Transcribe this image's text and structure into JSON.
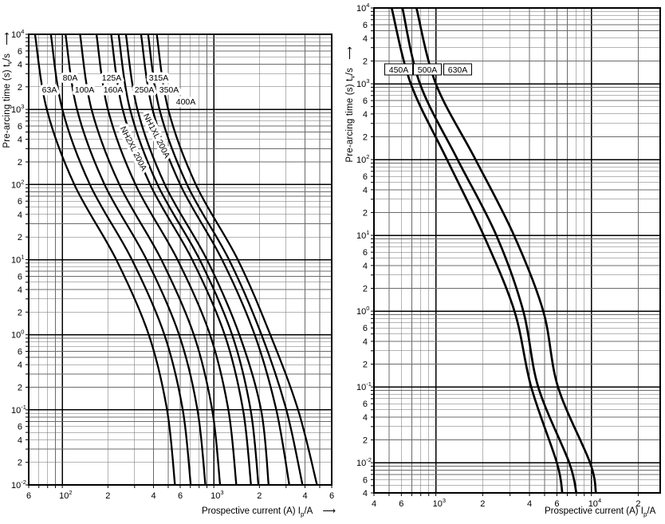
{
  "ui": {
    "up_arrow": "   ⟶",
    "right_arrow": "    ⟶"
  },
  "styles": {
    "background": "#ffffff",
    "curve_color": "#000000",
    "grid_minor_color": "#6b6b6b",
    "grid_major_color": "#000000",
    "label_halo": "#ffffff"
  },
  "chart_data": [
    {
      "id": "left",
      "type": "line",
      "log_x": true,
      "log_y": true,
      "grid": "log-major-minor",
      "x_label": {
        "text": "Prospective current (A) I",
        "sub": "p",
        "post": "/A"
      },
      "y_label": {
        "text": "Pre-arcing time (s) t",
        "sub": "v",
        "post": "/s"
      },
      "x_range": [
        60,
        6000
      ],
      "y_range": [
        0.01,
        10000
      ],
      "x_minor_labels": [
        2,
        4,
        6
      ],
      "y_minor_labels": [
        6,
        4,
        2
      ],
      "stroke_width": 2.3,
      "curves": [
        {
          "name": "63A",
          "points": [
            [
              66,
              10000
            ],
            [
              79,
              1000
            ],
            [
              120,
              100
            ],
            [
              227,
              10
            ],
            [
              372,
              1
            ],
            [
              491,
              0.1
            ],
            [
              554,
              0.01
            ]
          ]
        },
        {
          "name": "80A",
          "points": [
            [
              84,
              10000
            ],
            [
              100,
              1000
            ],
            [
              152,
              100
            ],
            [
              288,
              10
            ],
            [
              472,
              1
            ],
            [
              624,
              0.1
            ],
            [
              704,
              0.01
            ]
          ]
        },
        {
          "name": "100A",
          "points": [
            [
              105,
              10000
            ],
            [
              125,
              1000
            ],
            [
              190,
              100
            ],
            [
              360,
              10
            ],
            [
              590,
              1
            ],
            [
              780,
              0.1
            ],
            [
              880,
              0.01
            ]
          ]
        },
        {
          "name": "125A",
          "points": [
            [
              131,
              10000
            ],
            [
              156,
              1000
            ],
            [
              238,
              100
            ],
            [
              450,
              10
            ],
            [
              738,
              1
            ],
            [
              975,
              0.1
            ],
            [
              1100,
              0.01
            ]
          ]
        },
        {
          "name": "160A",
          "points": [
            [
              168,
              10000
            ],
            [
              200,
              1000
            ],
            [
              304,
              100
            ],
            [
              576,
              10
            ],
            [
              944,
              1
            ],
            [
              1248,
              0.1
            ],
            [
              1408,
              0.01
            ]
          ]
        },
        {
          "name": "NH2XL 200A",
          "points": [
            [
              210,
              10000
            ],
            [
              250,
              1000
            ],
            [
              380,
              100
            ],
            [
              720,
              10
            ],
            [
              1180,
              1
            ],
            [
              1560,
              0.1
            ],
            [
              1760,
              0.01
            ]
          ]
        },
        {
          "name": "NH1XL 200A",
          "points": [
            [
              235,
              10000
            ],
            [
              280,
              1000
            ],
            [
              425,
              100
            ],
            [
              806,
              10
            ],
            [
              1320,
              1
            ],
            [
              1750,
              0.1
            ],
            [
              1970,
              0.01
            ]
          ]
        },
        {
          "name": "250A",
          "points": [
            [
              263,
              10000
            ],
            [
              313,
              1000
            ],
            [
              475,
              100
            ],
            [
              900,
              10
            ],
            [
              1475,
              1
            ],
            [
              2050,
              0.1
            ],
            [
              2300,
              0.01
            ]
          ]
        },
        {
          "name": "315A",
          "points": [
            [
              331,
              10000
            ],
            [
              394,
              1000
            ],
            [
              600,
              100
            ],
            [
              1134,
              10
            ],
            [
              1860,
              1
            ],
            [
              2583,
              0.1
            ],
            [
              3150,
              0.01
            ]
          ]
        },
        {
          "name": "350A",
          "points": [
            [
              368,
              10000
            ],
            [
              438,
              1000
            ],
            [
              665,
              100
            ],
            [
              1260,
              10
            ],
            [
              2065,
              1
            ],
            [
              3010,
              0.1
            ],
            [
              3850,
              0.01
            ]
          ]
        },
        {
          "name": "400A",
          "points": [
            [
              420,
              10000
            ],
            [
              500,
              1000
            ],
            [
              760,
              100
            ],
            [
              1440,
              10
            ],
            [
              2360,
              1
            ],
            [
              3600,
              0.1
            ],
            [
              4800,
              0.01
            ]
          ]
        }
      ],
      "annotations": [
        {
          "text": "80A",
          "x": 88,
          "y": 97
        },
        {
          "text": "125A",
          "x": 140,
          "y": 97
        },
        {
          "text": "315A",
          "x": 199,
          "y": 97
        },
        {
          "text": "63A",
          "x": 62,
          "y": 112
        },
        {
          "text": "100A",
          "x": 106,
          "y": 112
        },
        {
          "text": "160A",
          "x": 142,
          "y": 112
        },
        {
          "text": "250A",
          "x": 181,
          "y": 112
        },
        {
          "text": "350A",
          "x": 212,
          "y": 112
        },
        {
          "text": "400A",
          "x": 233,
          "y": 127
        },
        {
          "text": "NH2XL 200A",
          "x": 168,
          "y": 186,
          "rotate": 63
        },
        {
          "text": "NH1XL 200A",
          "x": 197,
          "y": 170,
          "rotate": 63
        }
      ]
    },
    {
      "id": "right",
      "type": "line",
      "log_x": true,
      "log_y": true,
      "grid": "log-major-minor",
      "x_label": {
        "text": "Prospective current (A) I",
        "sub": "p",
        "post": "/A"
      },
      "y_label": {
        "text": "Pre-arcing time (s) t",
        "sub": "v",
        "post": "/s"
      },
      "x_range": [
        400,
        27700
      ],
      "y_range": [
        0.004,
        10000
      ],
      "x_minor_labels": [
        2,
        4,
        6
      ],
      "y_minor_labels": [
        6,
        4,
        2
      ],
      "stroke_width": 2.7,
      "curves": [
        {
          "name": "450A",
          "points": [
            [
              520,
              10000
            ],
            [
              690,
              1000
            ],
            [
              1180,
              100
            ],
            [
              2030,
              10
            ],
            [
              3200,
              1
            ],
            [
              4100,
              0.1
            ],
            [
              6000,
              0.01
            ],
            [
              6500,
              0.004
            ]
          ]
        },
        {
          "name": "500A",
          "points": [
            [
              610,
              10000
            ],
            [
              790,
              1000
            ],
            [
              1380,
              100
            ],
            [
              2450,
              10
            ],
            [
              3650,
              1
            ],
            [
              4550,
              0.1
            ],
            [
              7200,
              0.01
            ],
            [
              8000,
              0.004
            ]
          ]
        },
        {
          "name": "630A",
          "points": [
            [
              750,
              10000
            ],
            [
              1000,
              1000
            ],
            [
              1800,
              100
            ],
            [
              3180,
              10
            ],
            [
              4900,
              1
            ],
            [
              6100,
              0.1
            ],
            [
              9800,
              0.01
            ],
            [
              10700,
              0.004
            ]
          ]
        }
      ],
      "annotations": [
        {
          "text": "450A",
          "x": 500,
          "y": 87,
          "box": true
        },
        {
          "text": "500A",
          "x": 536,
          "y": 87,
          "box": true
        },
        {
          "text": "630A",
          "x": 574,
          "y": 87,
          "box": true
        }
      ]
    }
  ]
}
